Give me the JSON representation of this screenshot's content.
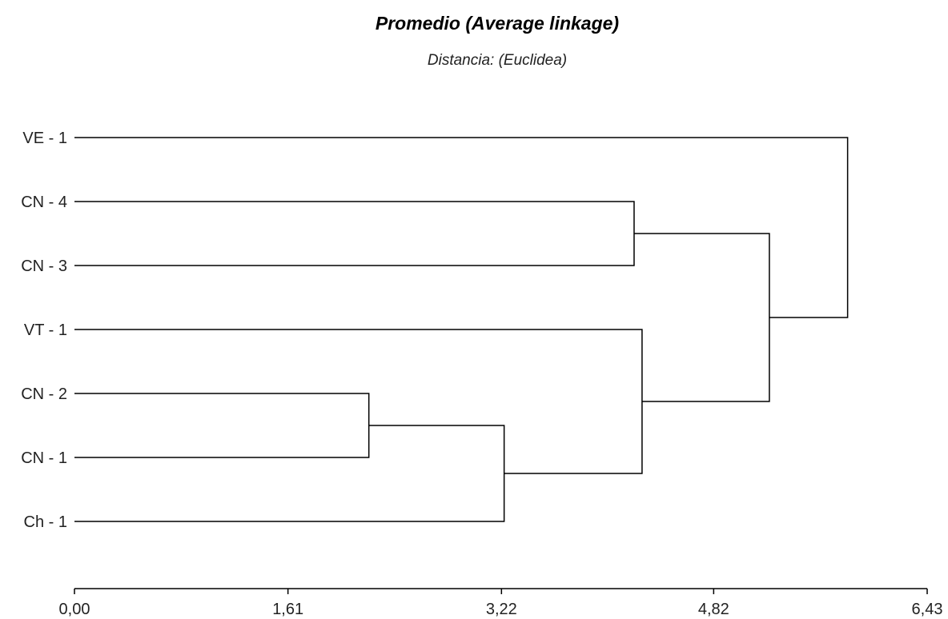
{
  "chart_data": {
    "type": "dendrogram",
    "title": "Promedio (Average linkage)",
    "subtitle": "Distancia: (Euclidea)",
    "orientation": "horizontal",
    "leaves": [
      "VE - 1",
      "CN - 4",
      "CN - 3",
      "VT - 1",
      "CN - 2",
      "CN - 1",
      "Ch - 1"
    ],
    "merges": [
      {
        "id": "m1",
        "children": [
          "CN - 2",
          "CN - 1"
        ],
        "height": 2.22
      },
      {
        "id": "m2",
        "children": [
          "m1",
          "Ch - 1"
        ],
        "height": 3.24
      },
      {
        "id": "m3",
        "children": [
          "CN - 4",
          "CN - 3"
        ],
        "height": 4.22
      },
      {
        "id": "m4",
        "children": [
          "VT - 1",
          "m2"
        ],
        "height": 4.28
      },
      {
        "id": "m5",
        "children": [
          "m3",
          "m4"
        ],
        "height": 5.24
      },
      {
        "id": "m6",
        "children": [
          "VE - 1",
          "m5"
        ],
        "height": 5.83
      }
    ],
    "x_axis": {
      "range": [
        0,
        6.43
      ],
      "ticks": [
        0,
        1.61,
        3.22,
        4.82,
        6.43
      ],
      "tick_labels": [
        "0,00",
        "1,61",
        "3,22",
        "4,82",
        "6,43"
      ]
    },
    "grid": false
  }
}
